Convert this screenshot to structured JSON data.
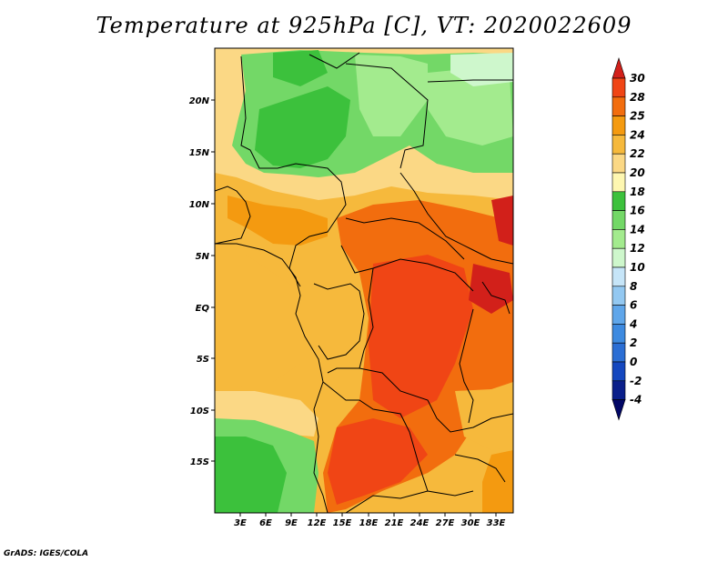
{
  "title": "Temperature at 925hPa [C], VT: 2020022609",
  "credit": "GrADS: IGES/COLA",
  "map": {
    "lat_labels": [
      "20N",
      "15N",
      "10N",
      "5N",
      "EQ",
      "5S",
      "10S",
      "15S"
    ],
    "lon_labels": [
      "3E",
      "6E",
      "9E",
      "12E",
      "15E",
      "18E",
      "21E",
      "24E",
      "27E",
      "30E",
      "33E"
    ]
  },
  "colorbar": {
    "labels": [
      "30",
      "28",
      "25",
      "24",
      "22",
      "20",
      "18",
      "16",
      "14",
      "12",
      "10",
      "8",
      "6",
      "4",
      "2",
      "0",
      "-2",
      "-4"
    ],
    "colors": [
      "#d2201a",
      "#f04515",
      "#f26d0e",
      "#f49a10",
      "#f6b93c",
      "#fbd885",
      "#fef7b1",
      "#3cc13c",
      "#73d867",
      "#a3eb8e",
      "#cef7cc",
      "#c6e5f8",
      "#93c8f1",
      "#5fa6ea",
      "#3d8ae0",
      "#2b6ed4",
      "#1447bf",
      "#0a1f8a",
      "#020766"
    ]
  }
}
